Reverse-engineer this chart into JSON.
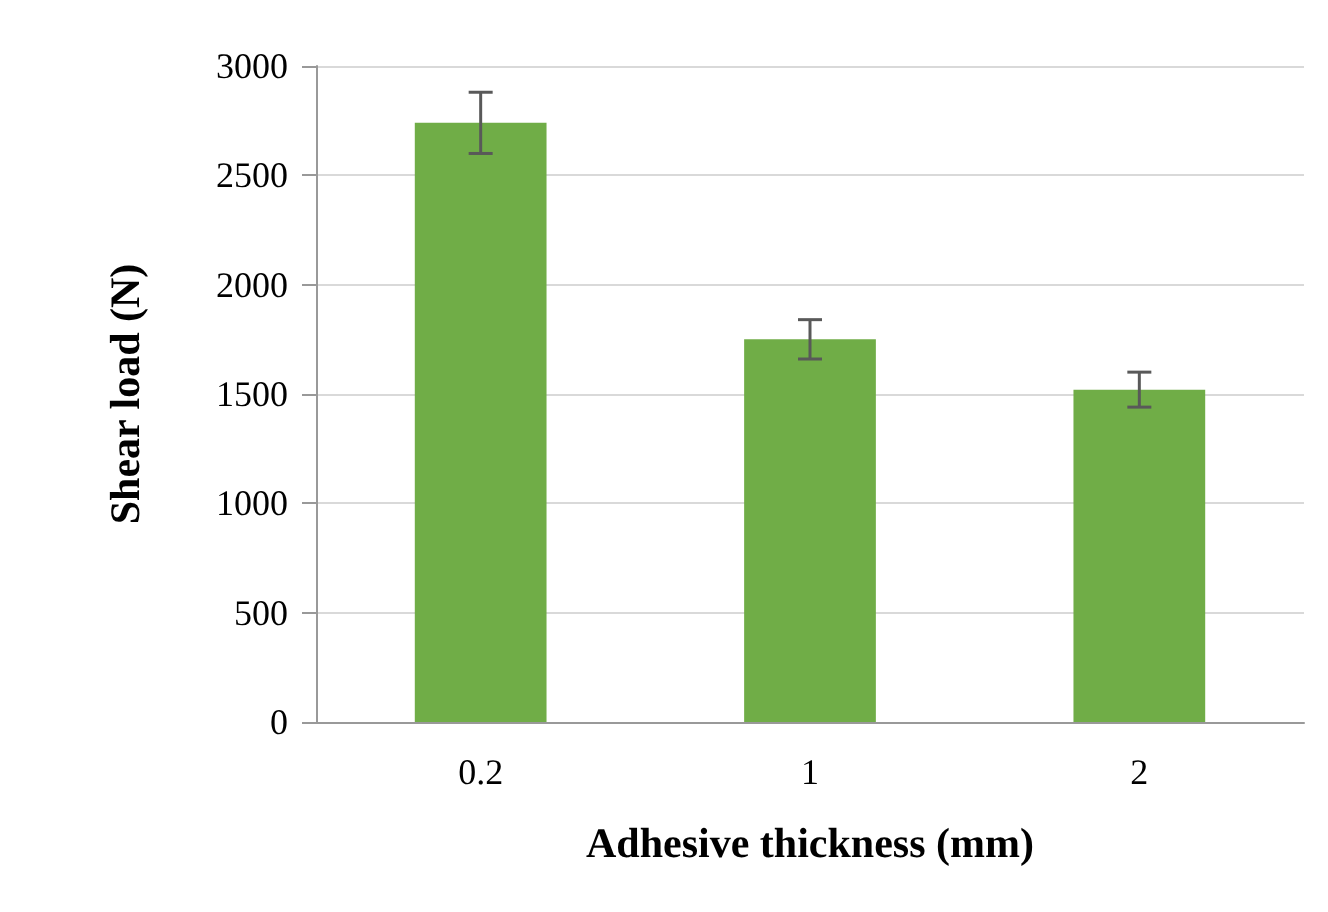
{
  "chart_data": {
    "type": "bar",
    "xlabel": "Adhesive thickness (mm)",
    "ylabel": "Shear load (N)",
    "categories": [
      "0.2",
      "1",
      "2"
    ],
    "values": [
      2740,
      1750,
      1520
    ],
    "errors": [
      140,
      90,
      80
    ],
    "color": "#70ad47",
    "ylim": [
      0,
      3000
    ],
    "yticks": [
      0,
      500,
      1000,
      1500,
      2000,
      2500,
      3000
    ],
    "grid": "y"
  }
}
